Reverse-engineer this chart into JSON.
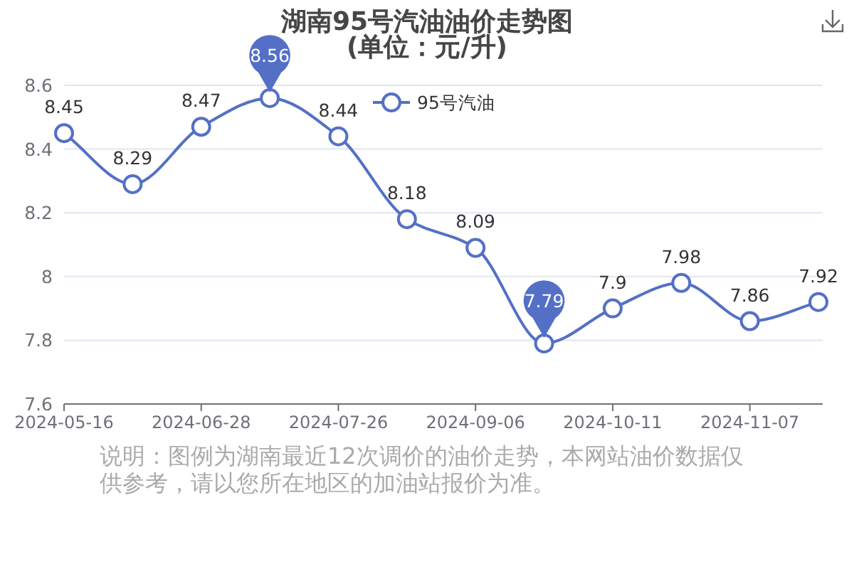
{
  "chart_data": {
    "type": "line",
    "title": "湖南95号汽油油价走势图",
    "subtitle": "(单位：元/升)",
    "categories": [
      "2024-05-16",
      null,
      "2024-06-28",
      null,
      "2024-07-26",
      null,
      "2024-09-06",
      null,
      "2024-10-11",
      null,
      "2024-11-07",
      null
    ],
    "series": [
      {
        "name": "95号汽油",
        "color": "#5470c6",
        "values": [
          8.45,
          8.29,
          8.47,
          8.56,
          8.44,
          8.18,
          8.09,
          7.79,
          7.9,
          7.98,
          7.86,
          7.92
        ],
        "value_labels": [
          "8.45",
          "8.29",
          "8.47",
          null,
          "8.44",
          "8.18",
          "8.09",
          null,
          "7.9",
          "7.98",
          "7.86",
          "7.92"
        ]
      }
    ],
    "ylim": [
      7.6,
      8.6
    ],
    "yticks": [
      7.6,
      7.8,
      8,
      8.2,
      8.4,
      8.6
    ],
    "grid": "y",
    "legend": "top",
    "marker": "circle",
    "line_style": "solid",
    "annotations": [
      {
        "text": "8.56",
        "y": 8.56
      },
      {
        "text": "7.79",
        "y": 7.79
      },
      "说明：图例为湖南最近12次调价的油价走势，本网站油价数据仅供参考，请以您所在地区的加油站报价为准。"
    ]
  }
}
